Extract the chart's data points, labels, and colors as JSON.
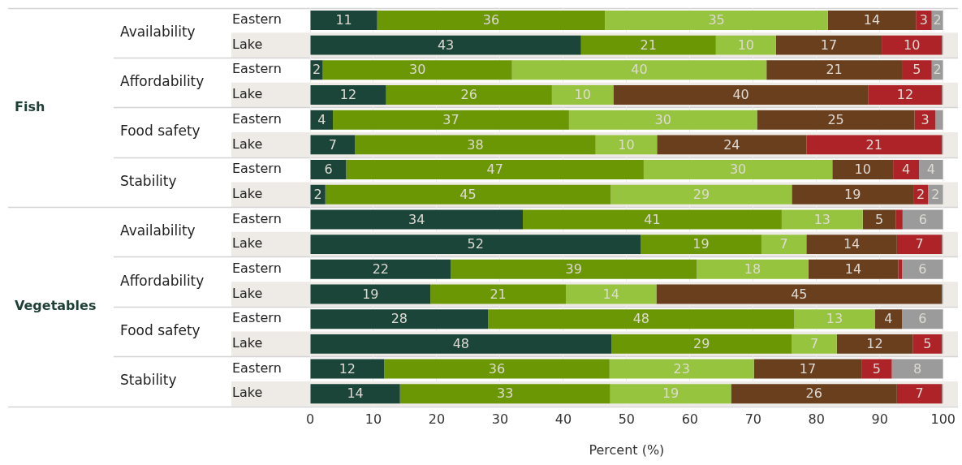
{
  "chart_data": {
    "type": "bar",
    "orientation": "horizontal",
    "stacked": true,
    "xlabel": "Percent (%)",
    "categories": [
      "Eastern",
      "Lake",
      "Eastern",
      "Lake",
      "Eastern",
      "Lake",
      "Eastern",
      "Lake",
      "Eastern",
      "Lake",
      "Eastern",
      "Lake",
      "Eastern",
      "Lake",
      "Eastern",
      "Lake"
    ],
    "annotations": [
      "Fish",
      "Availability",
      "Affordability",
      "Food safety",
      "Stability",
      "Vegetables",
      "Availability",
      "Affordability",
      "Food safety",
      "Stability"
    ],
    "series": [
      {
        "color": "#1b4539",
        "values": [
          10.6,
          42.8,
          2.0,
          12.0,
          3.6,
          7.1,
          5.7,
          2.4,
          33.6,
          52.2,
          22.2,
          19.0,
          28.1,
          47.6,
          11.7,
          14.2
        ],
        "value_labels": [
          "11",
          "43",
          "2",
          "12",
          "4",
          "7",
          "6",
          "2",
          "34",
          "52",
          "22",
          "19",
          "28",
          "48",
          "12",
          "14"
        ]
      },
      {
        "color": "#6b9704",
        "values": [
          36.0,
          21.3,
          29.9,
          26.2,
          37.3,
          38.0,
          47.0,
          45.1,
          40.9,
          19.1,
          38.9,
          21.4,
          48.4,
          28.5,
          35.6,
          33.2
        ],
        "value_labels": [
          "36",
          "21",
          "30",
          "26",
          "37",
          "38",
          "47",
          "45",
          "41",
          "19",
          "39",
          "21",
          "48",
          "29",
          "36",
          "33"
        ]
      },
      {
        "color": "#97c43e",
        "values": [
          35.2,
          9.5,
          40.2,
          9.7,
          29.7,
          9.7,
          29.8,
          28.6,
          12.8,
          7.1,
          17.6,
          14.3,
          12.7,
          7.1,
          22.8,
          19.1
        ],
        "value_labels": [
          "35",
          "10",
          "40",
          "10",
          "30",
          "10",
          "30",
          "29",
          "13",
          "7",
          "18",
          "14",
          "13",
          "7",
          "23",
          "19"
        ]
      },
      {
        "color": "#693f1e",
        "values": [
          13.9,
          16.7,
          21.4,
          40.3,
          24.9,
          23.6,
          9.6,
          19.2,
          5.2,
          14.3,
          14.2,
          45.1,
          4.3,
          12.0,
          17.0,
          26.2
        ],
        "value_labels": [
          "14",
          "17",
          "21",
          "40",
          "25",
          "24",
          "10",
          "19",
          "5",
          "14",
          "14",
          "45",
          "4",
          "12",
          "17",
          "26"
        ]
      },
      {
        "color": "#ae2327",
        "values": [
          2.5,
          9.5,
          4.7,
          11.6,
          3.3,
          21.4,
          4.1,
          2.3,
          1.1,
          7.1,
          0.6,
          0,
          0,
          4.6,
          4.8,
          7.1
        ],
        "value_labels": [
          "3",
          "10",
          "5",
          "12",
          "3",
          "21",
          "4",
          "2",
          null,
          "7",
          null,
          null,
          null,
          "5",
          "5",
          "7"
        ]
      },
      {
        "color": "#9b9b9b",
        "values": [
          1.8,
          0.2,
          1.8,
          0.2,
          1.2,
          0.2,
          3.8,
          2.4,
          6.4,
          0.2,
          6.5,
          0.2,
          6.5,
          0.2,
          8.1,
          0.2
        ],
        "value_labels": [
          "2",
          null,
          "2",
          null,
          null,
          null,
          "4",
          "2",
          "6",
          null,
          "6",
          null,
          "6",
          null,
          "8",
          null
        ]
      }
    ],
    "xlim": [
      0,
      100
    ],
    "xticks": [
      0,
      10,
      20,
      30,
      40,
      50,
      60,
      70,
      80,
      90,
      100
    ],
    "grid": "x",
    "legend": false
  }
}
